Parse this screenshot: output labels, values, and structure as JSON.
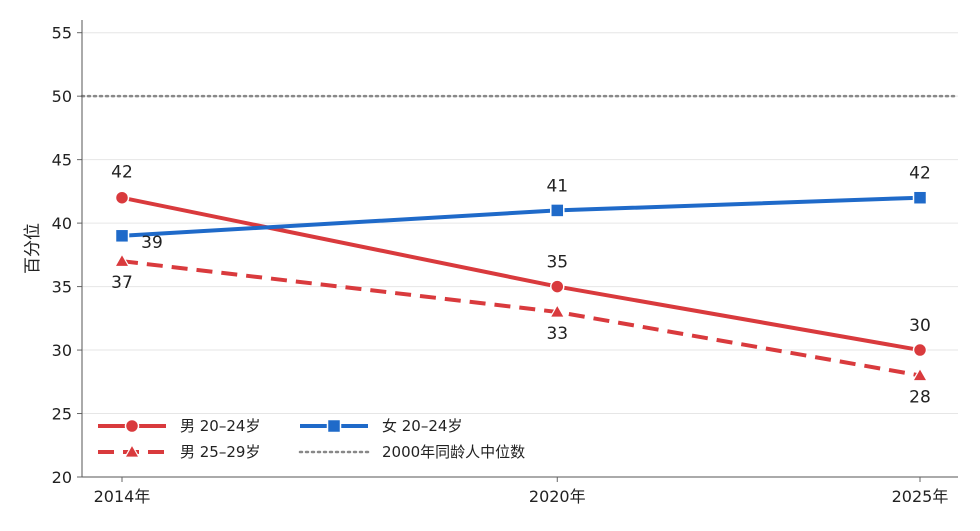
{
  "chart_data": {
    "type": "line",
    "categories": [
      "2014年",
      "2020年",
      "2025年"
    ],
    "x": [
      2014,
      2020,
      2025
    ],
    "ylabel": "百分位",
    "xlabel": "",
    "ylim": [
      20,
      56
    ],
    "yticks": [
      20,
      25,
      30,
      35,
      40,
      45,
      50,
      55
    ],
    "grid": "horizontal",
    "legend_position": "bottom-left",
    "series": [
      {
        "name": "男 20–24岁",
        "values": [
          42,
          35,
          30
        ],
        "labels": [
          "42",
          "35",
          "30"
        ],
        "color": "#d93a3d",
        "marker": "circle",
        "dash": "solid"
      },
      {
        "name": "男 25–29岁",
        "values": [
          37,
          33,
          28
        ],
        "labels": [
          "37",
          "33",
          "28"
        ],
        "color": "#d93a3d",
        "marker": "triangle",
        "dash": "dashed"
      },
      {
        "name": "女 20–24岁",
        "values": [
          39,
          41,
          42
        ],
        "labels": [
          "39",
          "41",
          "42"
        ],
        "color": "#1f6ac9",
        "marker": "square",
        "dash": "solid"
      }
    ],
    "reference_line": {
      "name": "2000年同龄人中位数",
      "value": 50,
      "color": "#888888",
      "dash": "dotted"
    }
  }
}
